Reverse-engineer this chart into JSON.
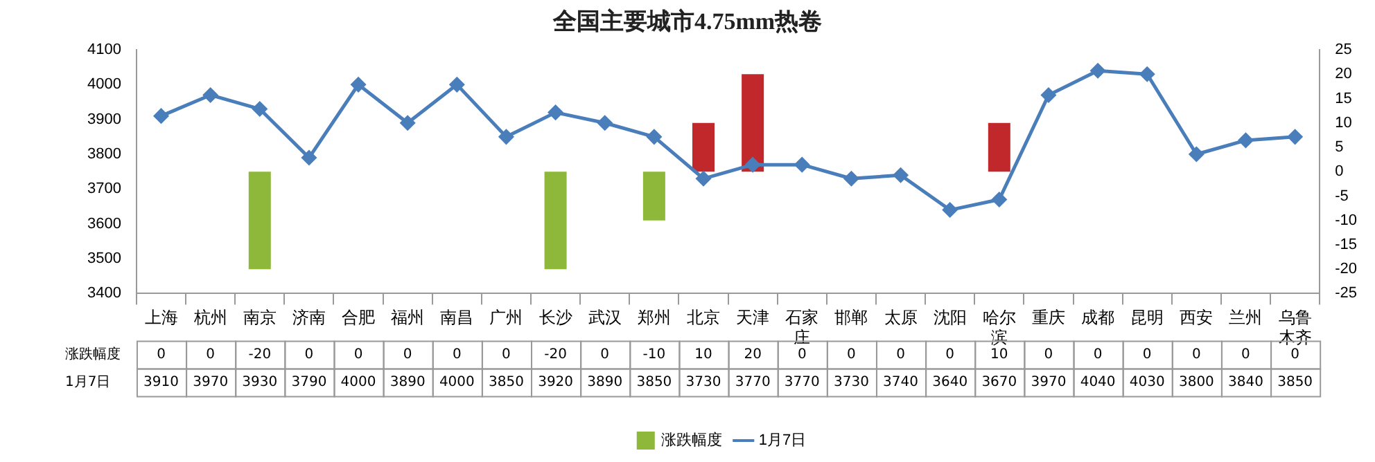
{
  "chart_data": {
    "type": "bar",
    "title": "全国主要城市4.75mm热卷",
    "categories": [
      "上海",
      "杭州",
      "南京",
      "济南",
      "合肥",
      "福州",
      "南昌",
      "广州",
      "长沙",
      "武汉",
      "郑州",
      "北京",
      "天津",
      "石家庄",
      "邯郸",
      "太原",
      "沈阳",
      "哈尔滨",
      "重庆",
      "成都",
      "昆明",
      "西安",
      "兰州",
      "乌鲁木齐"
    ],
    "series": [
      {
        "name": "涨跌幅度",
        "axis": "y2",
        "color": "#8db83a",
        "colors": [
          "#8db83a",
          "#8db83a",
          "#8db83a",
          "#8db83a",
          "#8db83a",
          "#8db83a",
          "#8db83a",
          "#8db83a",
          "#8db83a",
          "#8db83a",
          "#8db83a",
          "#c0282b",
          "#c0282b",
          "#8db83a",
          "#8db83a",
          "#8db83a",
          "#8db83a",
          "#c0282b",
          "#8db83a",
          "#8db83a",
          "#8db83a",
          "#8db83a",
          "#8db83a",
          "#8db83a"
        ],
        "values": [
          0,
          0,
          -20,
          0,
          0,
          0,
          0,
          0,
          -20,
          0,
          -10,
          10,
          20,
          0,
          0,
          0,
          0,
          10,
          0,
          0,
          0,
          0,
          0,
          0
        ]
      },
      {
        "name": "1月7日",
        "type": "line",
        "color": "#4a7ebb",
        "values": [
          3910,
          3970,
          3930,
          3790,
          4000,
          3890,
          4000,
          3850,
          3920,
          3890,
          3850,
          3730,
          3770,
          3770,
          3730,
          3740,
          3640,
          3670,
          3970,
          4040,
          4030,
          3800,
          3840,
          3850
        ]
      }
    ],
    "ylim": [
      3400,
      4100
    ],
    "yticks": [
      3400,
      3500,
      3600,
      3700,
      3800,
      3900,
      4000,
      4100
    ],
    "y2lim": [
      -25,
      25
    ],
    "y2ticks": [
      -25,
      -20,
      -15,
      -10,
      -5,
      0,
      5,
      10,
      15,
      20,
      25
    ],
    "marker": "diamond",
    "legend": "bottom",
    "data_labels": true
  }
}
